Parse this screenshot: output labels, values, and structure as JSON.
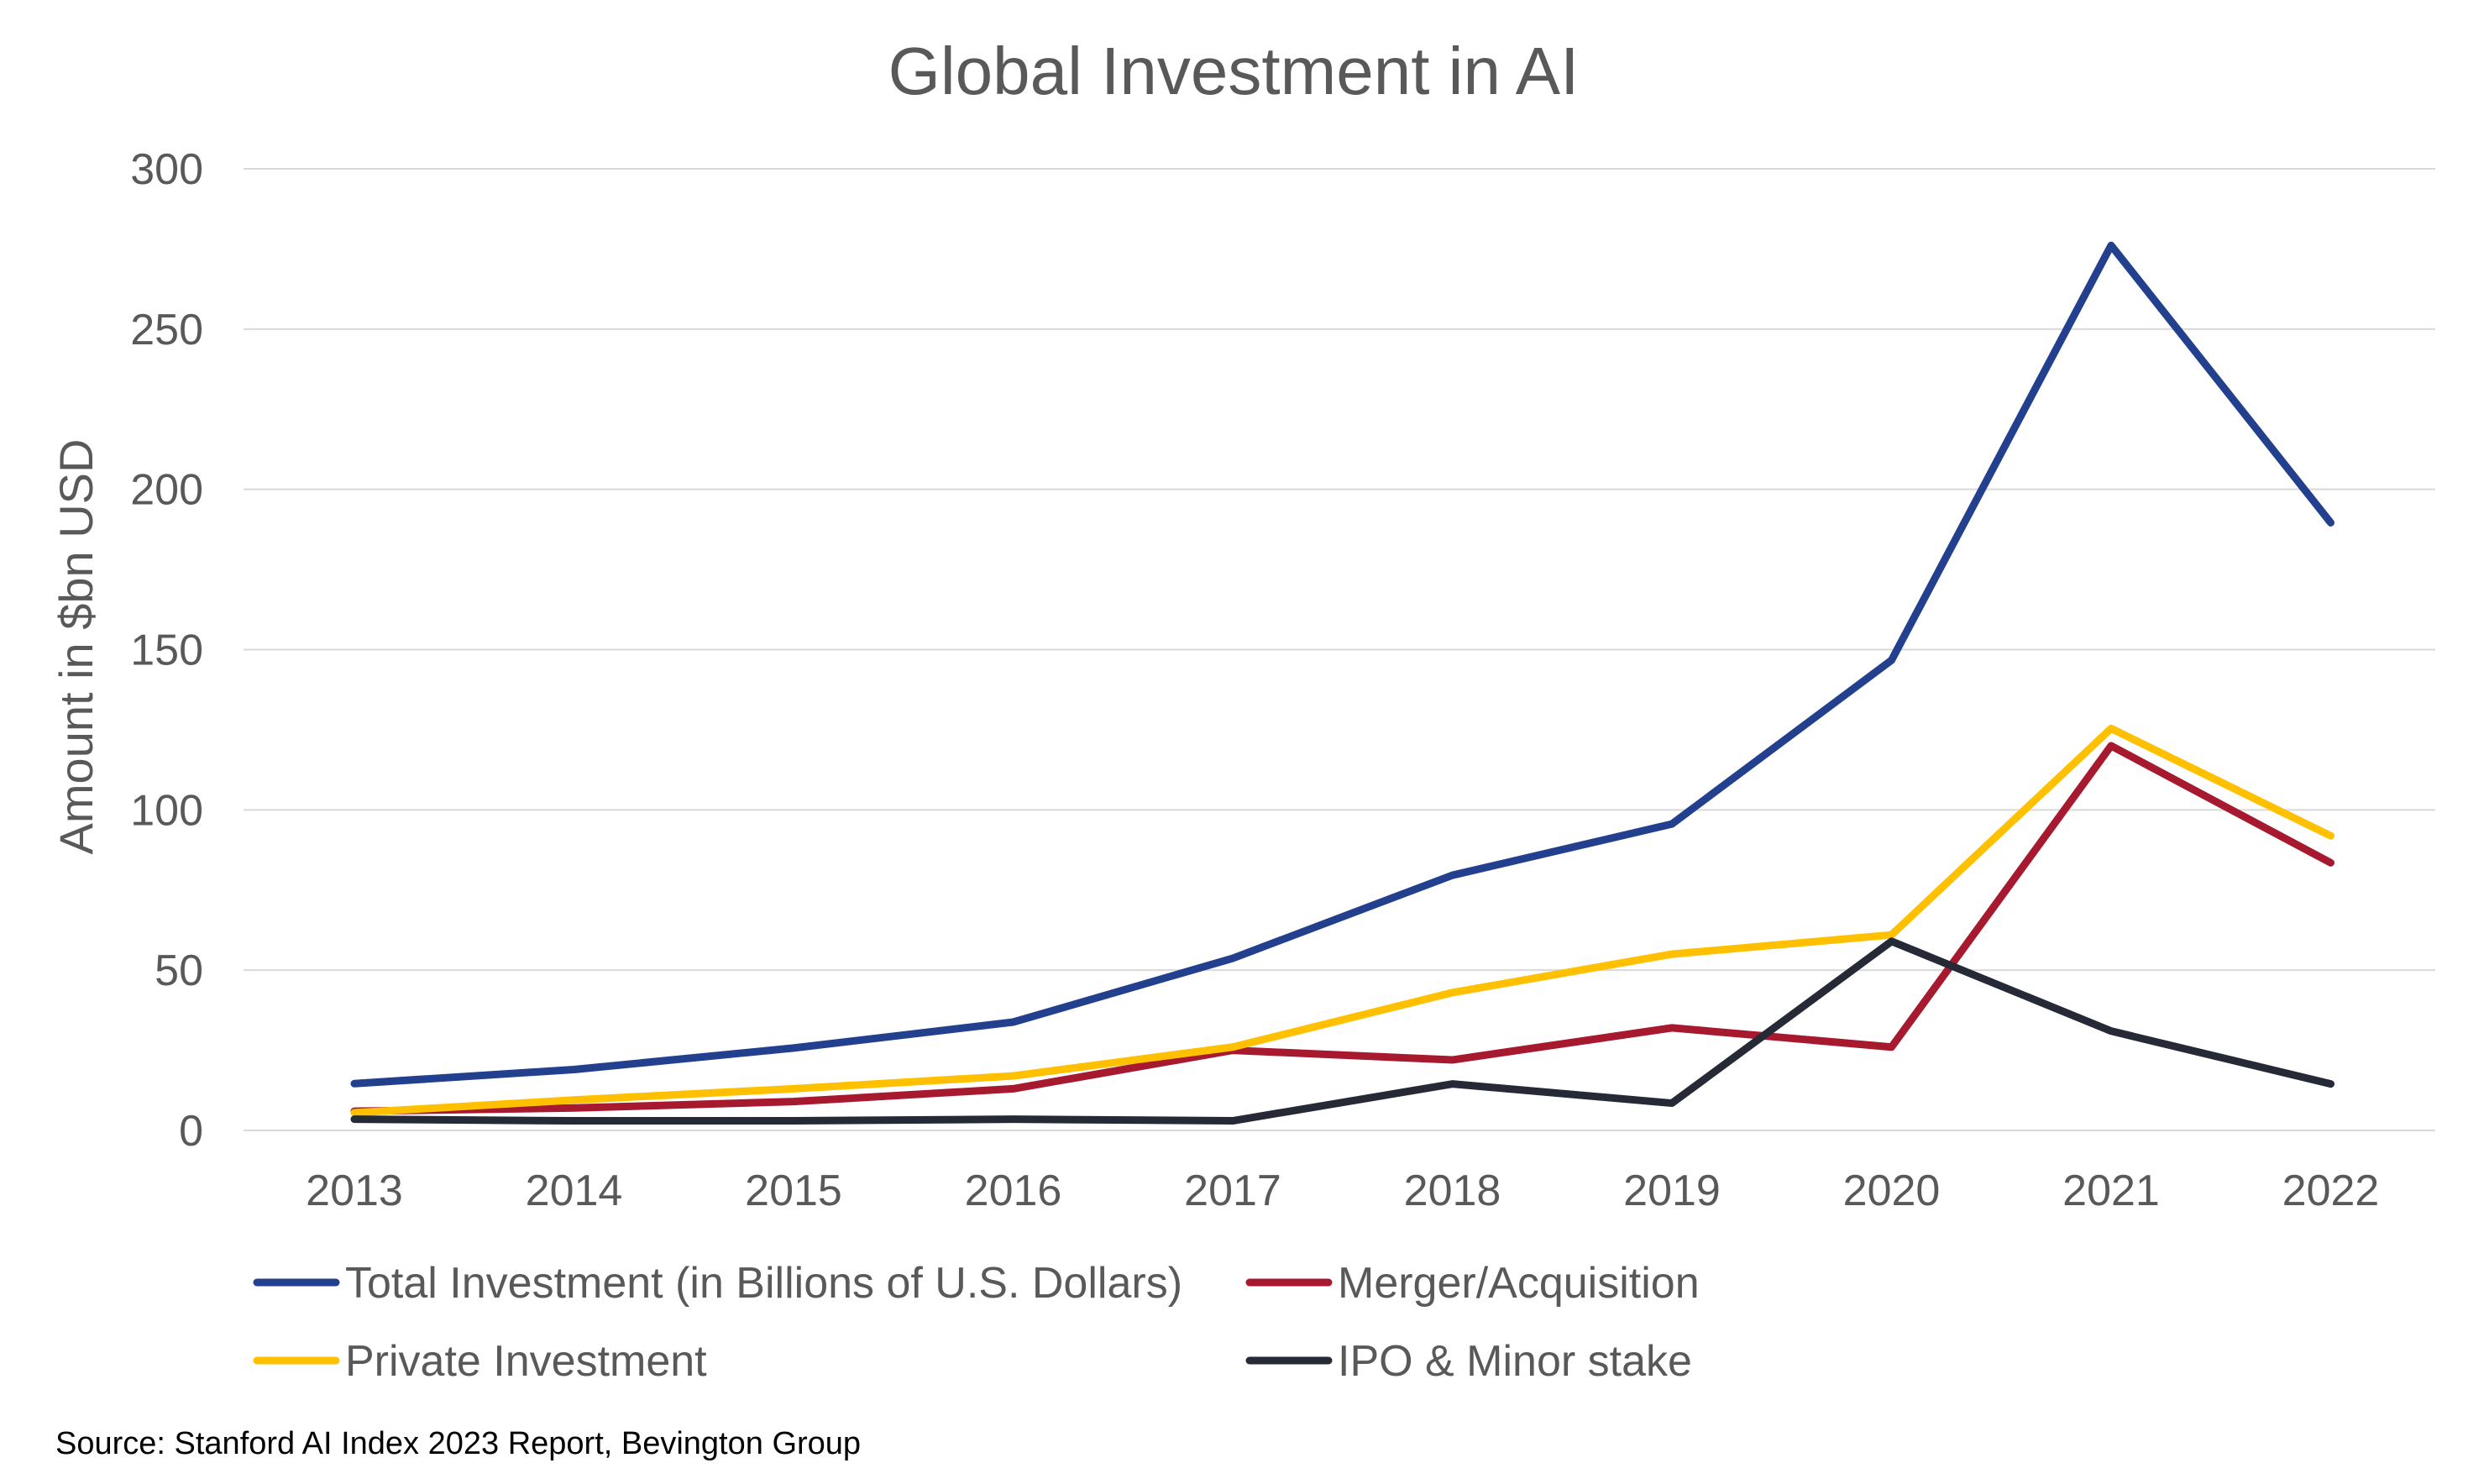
{
  "chart_data": {
    "type": "line",
    "title": "Global Investment in AI",
    "xlabel": "",
    "ylabel": "Amount in $bn USD",
    "categories": [
      "2013",
      "2014",
      "2015",
      "2016",
      "2017",
      "2018",
      "2019",
      "2020",
      "2021",
      "2022"
    ],
    "ylim": [
      0,
      300
    ],
    "yticks": [
      "0",
      "50",
      "100",
      "150",
      "200",
      "250",
      "300"
    ],
    "grid": true,
    "legend_position": "bottom",
    "series": [
      {
        "name": "Total Investment (in Billions of U.S. Dollars)",
        "color": "#23408e",
        "values": [
          14.6,
          19.0,
          25.7,
          33.8,
          53.7,
          79.6,
          95.6,
          146.7,
          276.1,
          189.6
        ]
      },
      {
        "name": "Merger/Acquisition",
        "color": "#a6192e",
        "values": [
          6,
          7,
          9,
          13,
          25,
          22,
          32,
          26,
          120,
          83.5
        ]
      },
      {
        "name": "Private Investment",
        "color": "#ffc000",
        "values": [
          5.5,
          9.5,
          13,
          17,
          26,
          43,
          55,
          61,
          125.4,
          91.9
        ]
      },
      {
        "name": "IPO & Minor stake",
        "color": "#262a36",
        "values": [
          3.5,
          3,
          3,
          3.5,
          3,
          14.5,
          8.5,
          59,
          31,
          14.5
        ]
      }
    ],
    "source": "Source: Stanford AI Index 2023 Report, Bevington Group"
  }
}
